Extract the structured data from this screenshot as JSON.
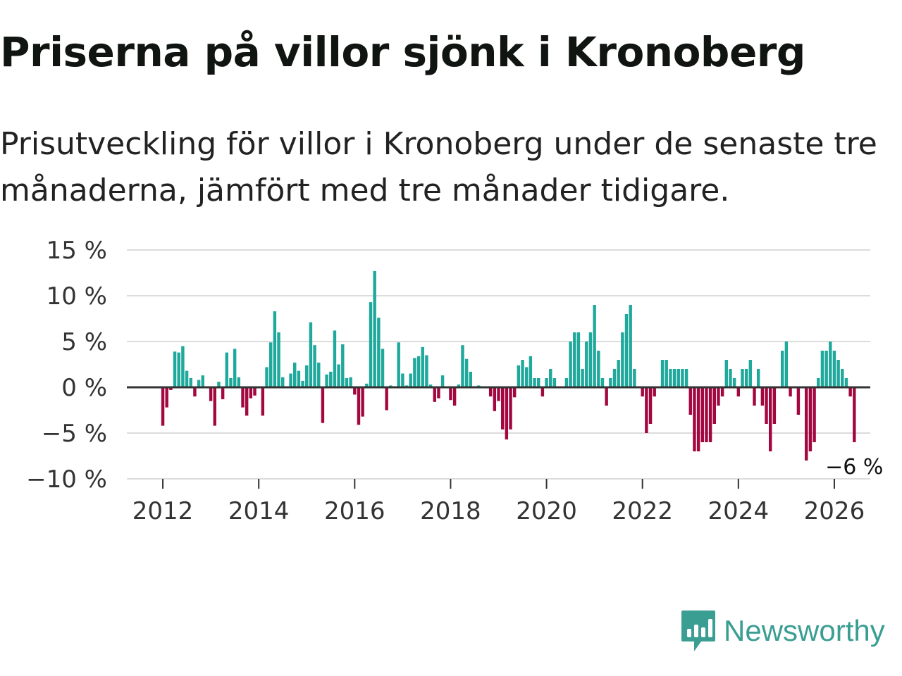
{
  "header": {
    "title": "Priserna på villor sjönk i Kronoberg",
    "subtitle": "Prisutveckling för villor i Kronoberg under de senaste tre månaderna, jämfört med tre månader tidigare."
  },
  "brand": {
    "name": "Newsworthy"
  },
  "colors": {
    "positive": "#1fa89c",
    "negative": "#a3073f",
    "grid": "#dcdcdc",
    "zero": "#333333",
    "brand": "#3a9e93"
  },
  "chart_data": {
    "type": "bar",
    "title": "Priserna på villor sjönk i Kronoberg",
    "ylabel": "",
    "xlabel": "",
    "ylim": [
      -10,
      15
    ],
    "xlim": [
      2011.25,
      2026.75
    ],
    "y_ticks": [
      15,
      10,
      5,
      0,
      -5,
      -10
    ],
    "y_tick_labels": [
      "15 %",
      "10 %",
      "5 %",
      "0 %",
      "−5 %",
      "−10 %"
    ],
    "x_ticks": [
      2012,
      2014,
      2016,
      2018,
      2020,
      2022,
      2024,
      2026
    ],
    "x_tick_labels": [
      "2012",
      "2014",
      "2016",
      "2018",
      "2020",
      "2022",
      "2024",
      "2026"
    ],
    "start": 2012.0,
    "step_months": 1,
    "values": [
      -4.2,
      -2.2,
      -0.3,
      3.9,
      3.8,
      4.5,
      1.8,
      1.0,
      -1.0,
      0.8,
      1.3,
      0.0,
      -1.5,
      -4.2,
      0.6,
      -1.3,
      3.8,
      1.0,
      4.2,
      1.1,
      -2.2,
      -3.1,
      -1.2,
      -0.9,
      0.0,
      -3.1,
      2.2,
      4.9,
      8.3,
      6.0,
      1.1,
      0.0,
      1.5,
      2.7,
      1.8,
      0.7,
      2.4,
      7.1,
      4.6,
      2.7,
      -3.9,
      1.4,
      1.7,
      6.2,
      2.5,
      4.7,
      1.0,
      1.1,
      -0.8,
      -4.1,
      -3.2,
      0.4,
      9.3,
      12.7,
      7.6,
      4.2,
      -2.5,
      0.2,
      0.0,
      4.9,
      1.5,
      0.2,
      1.5,
      3.2,
      3.4,
      4.4,
      3.5,
      0.3,
      -1.6,
      -1.2,
      1.3,
      0.0,
      -1.4,
      -2.0,
      0.3,
      4.6,
      3.1,
      1.7,
      0.0,
      0.2,
      0.0,
      0.0,
      -1.0,
      -2.6,
      -1.5,
      -4.6,
      -5.7,
      -4.6,
      -1.1,
      2.4,
      3.0,
      2.2,
      3.4,
      1.0,
      1.0,
      -1.0,
      1.0,
      2.0,
      1.0,
      0.0,
      0.0,
      1.0,
      5.0,
      6.0,
      6.0,
      2.0,
      5.0,
      6.0,
      9.0,
      4.0,
      1.0,
      -2.0,
      1.0,
      2.0,
      3.0,
      6.0,
      8.0,
      9.0,
      2.0,
      0.0,
      -1.0,
      -5.0,
      -4.0,
      -1.0,
      0.0,
      3.0,
      3.0,
      2.0,
      2.0,
      2.0,
      2.0,
      2.0,
      -3.0,
      -7.0,
      -7.0,
      -6.0,
      -6.0,
      -6.0,
      -4.0,
      -2.0,
      -1.0,
      3.0,
      2.0,
      1.0,
      -1.0,
      2.0,
      2.0,
      3.0,
      -2.0,
      2.0,
      -2.0,
      -4.0,
      -7.0,
      -4.0,
      0.0,
      4.0,
      5.0,
      -1.0,
      0.0,
      -3.0,
      0.0,
      -8.0,
      -7.0,
      -6.0,
      1.0,
      4.0,
      4.0,
      5.0,
      4.0,
      3.0,
      2.0,
      1.0,
      -1.0,
      -6.0
    ],
    "annotation": {
      "label": "−6 %",
      "value": -6,
      "target": "last"
    }
  }
}
